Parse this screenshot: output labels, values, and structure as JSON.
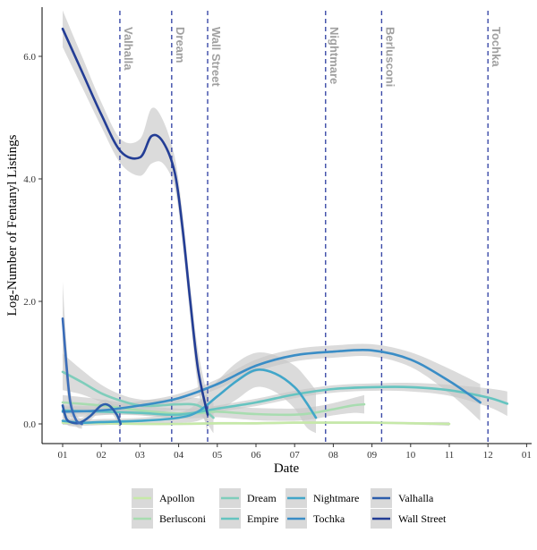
{
  "chart_data": {
    "type": "line",
    "title": "",
    "xlabel": "Date",
    "ylabel": "Log-Number of Fentanyl Listings",
    "x_ticks": [
      {
        "month": 1,
        "label": "01"
      },
      {
        "month": 2,
        "label": "02"
      },
      {
        "month": 3,
        "label": "03"
      },
      {
        "month": 4,
        "label": "04"
      },
      {
        "month": 5,
        "label": "05"
      },
      {
        "month": 6,
        "label": "06"
      },
      {
        "month": 7,
        "label": "07"
      },
      {
        "month": 8,
        "label": "08"
      },
      {
        "month": 9,
        "label": "09"
      },
      {
        "month": 10,
        "label": "10"
      },
      {
        "month": 11,
        "label": "11"
      },
      {
        "month": 12,
        "label": "12"
      },
      {
        "month": 13,
        "label": "01"
      }
    ],
    "xlim": [
      0.5,
      13.0
    ],
    "y_ticks": [
      {
        "value": 0,
        "label": "0.0"
      },
      {
        "value": 2,
        "label": "2.0"
      },
      {
        "value": 4,
        "label": "4.0"
      },
      {
        "value": 6,
        "label": "6.0"
      }
    ],
    "ylim": [
      -0.3,
      6.85
    ],
    "grid": false,
    "legend_position": "bottom",
    "closure_lines": [
      {
        "label": "Valhalla",
        "x": 2.48
      },
      {
        "label": "Dream",
        "x": 3.82
      },
      {
        "label": "Wall Street",
        "x": 4.75
      },
      {
        "label": "Nightmare",
        "x": 7.8
      },
      {
        "label": "Berlusconi",
        "x": 9.25
      },
      {
        "label": "Tochka",
        "x": 12.0
      }
    ],
    "series": [
      {
        "name": "Apollon",
        "color": "#c6e9a8",
        "x": [
          1.0,
          2.0,
          3.0,
          4.0,
          5.0,
          6.0,
          7.0,
          8.0,
          9.0,
          10.0,
          11.0
        ],
        "y": [
          0.02,
          0.01,
          0.0,
          0.0,
          0.01,
          0.01,
          0.02,
          0.02,
          0.02,
          0.01,
          0.0
        ],
        "se": [
          0.03,
          0.02,
          0.02,
          0.02,
          0.02,
          0.02,
          0.02,
          0.02,
          0.02,
          0.02,
          0.03
        ]
      },
      {
        "name": "Berlusconi",
        "color": "#a8dcb0",
        "x": [
          1.0,
          2.0,
          3.0,
          4.0,
          4.6,
          5.0,
          6.0,
          7.0,
          7.5,
          8.0,
          8.5,
          8.8
        ],
        "y": [
          0.35,
          0.3,
          0.22,
          0.17,
          0.18,
          0.2,
          0.16,
          0.15,
          0.18,
          0.24,
          0.3,
          0.32
        ],
        "se": [
          0.12,
          0.1,
          0.08,
          0.08,
          0.08,
          0.09,
          0.1,
          0.1,
          0.1,
          0.1,
          0.12,
          0.15
        ]
      },
      {
        "name": "Dream",
        "color": "#7fcdbb",
        "x": [
          1.0,
          1.5,
          2.0,
          2.5,
          3.0,
          3.5,
          4.0,
          4.5,
          4.9
        ],
        "y": [
          0.85,
          0.68,
          0.5,
          0.38,
          0.3,
          0.3,
          0.32,
          0.3,
          0.1
        ],
        "se": [
          0.3,
          0.2,
          0.14,
          0.1,
          0.1,
          0.1,
          0.1,
          0.12,
          0.25
        ]
      },
      {
        "name": "Empire",
        "color": "#65c4c0",
        "x": [
          1.0,
          2.0,
          3.0,
          4.0,
          5.0,
          6.0,
          7.0,
          8.0,
          9.0,
          10.0,
          11.0,
          12.0,
          12.5
        ],
        "y": [
          0.22,
          0.2,
          0.18,
          0.15,
          0.25,
          0.35,
          0.48,
          0.57,
          0.6,
          0.6,
          0.55,
          0.43,
          0.33
        ],
        "se": [
          0.06,
          0.05,
          0.04,
          0.04,
          0.05,
          0.06,
          0.06,
          0.06,
          0.06,
          0.07,
          0.09,
          0.15,
          0.2
        ]
      },
      {
        "name": "Nightmare",
        "color": "#41a6c9",
        "x": [
          1.0,
          1.5,
          2.0,
          3.0,
          4.0,
          4.5,
          5.0,
          5.5,
          6.0,
          6.5,
          7.0,
          7.3,
          7.55
        ],
        "y": [
          0.05,
          0.02,
          0.03,
          0.05,
          0.1,
          0.2,
          0.45,
          0.7,
          0.88,
          0.82,
          0.6,
          0.35,
          0.1
        ],
        "se": [
          0.06,
          0.05,
          0.05,
          0.05,
          0.08,
          0.15,
          0.25,
          0.3,
          0.28,
          0.3,
          0.35,
          0.4,
          0.45
        ]
      },
      {
        "name": "Tochka",
        "color": "#3a8dc6",
        "x": [
          1.0,
          2.0,
          3.0,
          4.0,
          5.0,
          6.0,
          7.0,
          8.0,
          9.0,
          10.0,
          11.0,
          11.8
        ],
        "y": [
          0.2,
          0.22,
          0.3,
          0.42,
          0.65,
          0.95,
          1.12,
          1.18,
          1.2,
          1.05,
          0.7,
          0.35
        ],
        "se": [
          0.1,
          0.08,
          0.07,
          0.07,
          0.08,
          0.1,
          0.1,
          0.1,
          0.1,
          0.12,
          0.2,
          0.3
        ]
      },
      {
        "name": "Valhalla",
        "color": "#2c5dab",
        "x": [
          1.0,
          1.1,
          1.25,
          1.45,
          1.7,
          2.0,
          2.2,
          2.4,
          2.5
        ],
        "y": [
          0.3,
          0.08,
          0.02,
          0.02,
          0.12,
          0.3,
          0.3,
          0.15,
          0.0
        ],
        "se": [
          0.1,
          0.08,
          0.06,
          0.06,
          0.07,
          0.08,
          0.08,
          0.1,
          0.15
        ]
      },
      {
        "name": "Wall Street",
        "color": "#233d95",
        "x": [
          1.0,
          1.5,
          2.0,
          2.5,
          3.0,
          3.3,
          3.6,
          3.9,
          4.1,
          4.3,
          4.5,
          4.75
        ],
        "y": [
          6.45,
          5.75,
          5.05,
          4.45,
          4.35,
          4.7,
          4.6,
          4.1,
          3.2,
          2.0,
          0.9,
          0.15
        ],
        "se": [
          0.3,
          0.25,
          0.2,
          0.2,
          0.3,
          0.45,
          0.35,
          0.25,
          0.25,
          0.25,
          0.3,
          0.3
        ]
      },
      {
        "name": "Wall Street",
        "color": "#3a6cb8",
        "legend": false,
        "x": [
          1.0,
          1.1,
          1.2,
          1.35,
          1.5
        ],
        "y": [
          1.72,
          0.95,
          0.35,
          0.06,
          0.0
        ],
        "se": [
          0.6,
          0.35,
          0.2,
          0.1,
          0.08
        ]
      }
    ]
  }
}
